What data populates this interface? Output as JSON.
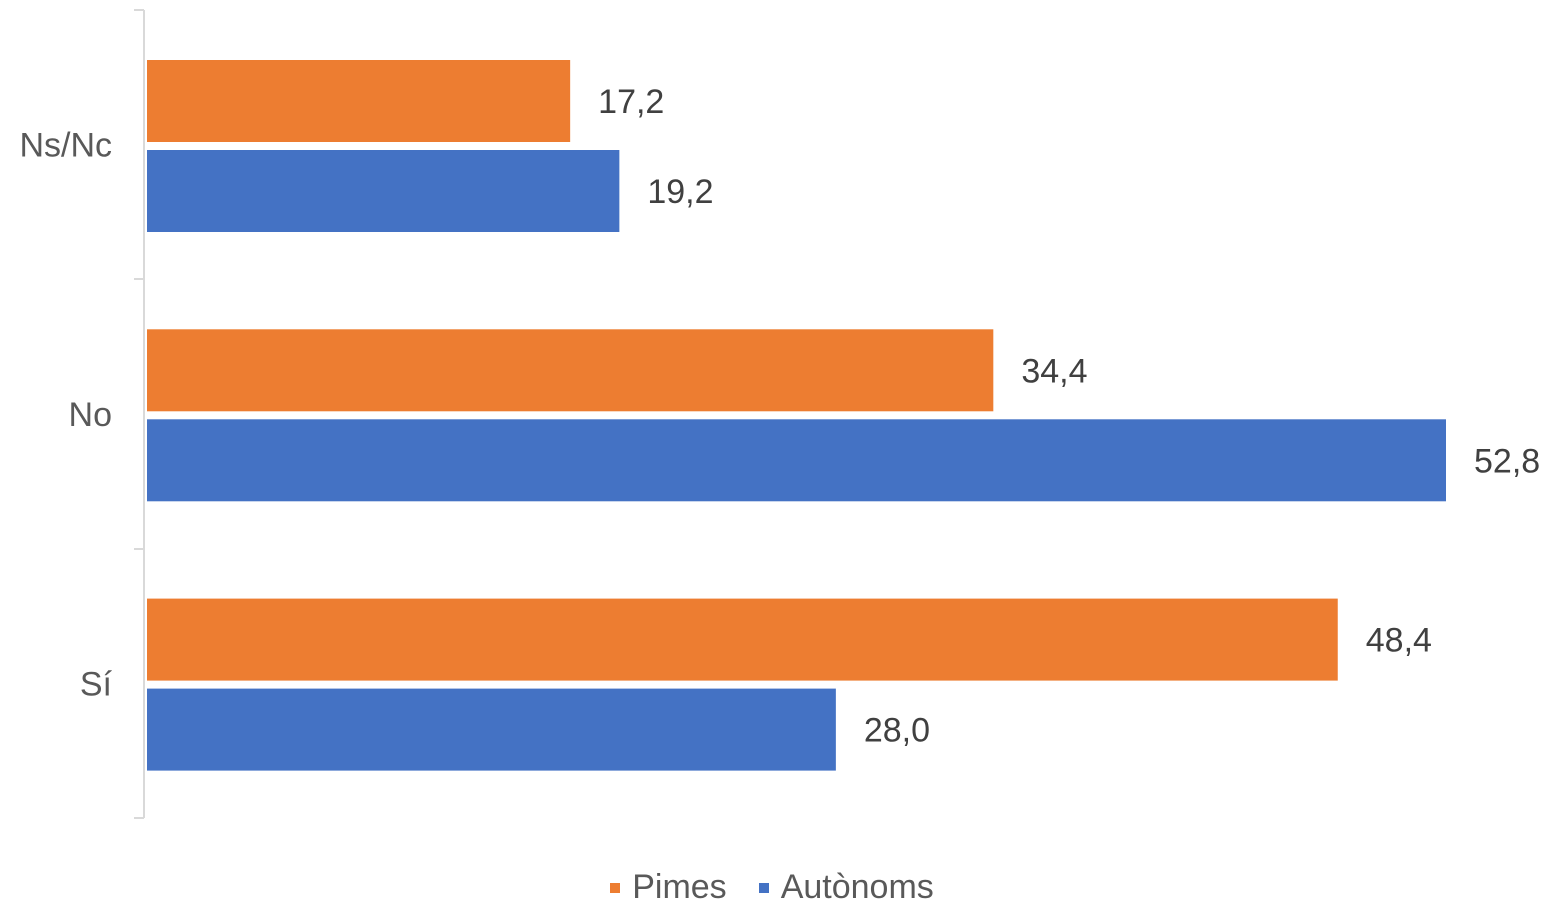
{
  "chart_data": {
    "type": "bar",
    "orientation": "horizontal",
    "categories": [
      "Ns/Nc",
      "No",
      "Sí"
    ],
    "series": [
      {
        "name": "Pimes",
        "color": "#ED7D31",
        "values": [
          17.2,
          34.4,
          48.4
        ],
        "labels": [
          "17,2",
          "34,4",
          "48,4"
        ]
      },
      {
        "name": "Autònoms",
        "color": "#4472C4",
        "values": [
          19.2,
          52.8,
          28.0
        ],
        "labels": [
          "19,2",
          "52,8",
          "28,0"
        ]
      }
    ],
    "xlim": [
      0,
      52.8
    ],
    "grid": false,
    "legend_position": "bottom"
  }
}
